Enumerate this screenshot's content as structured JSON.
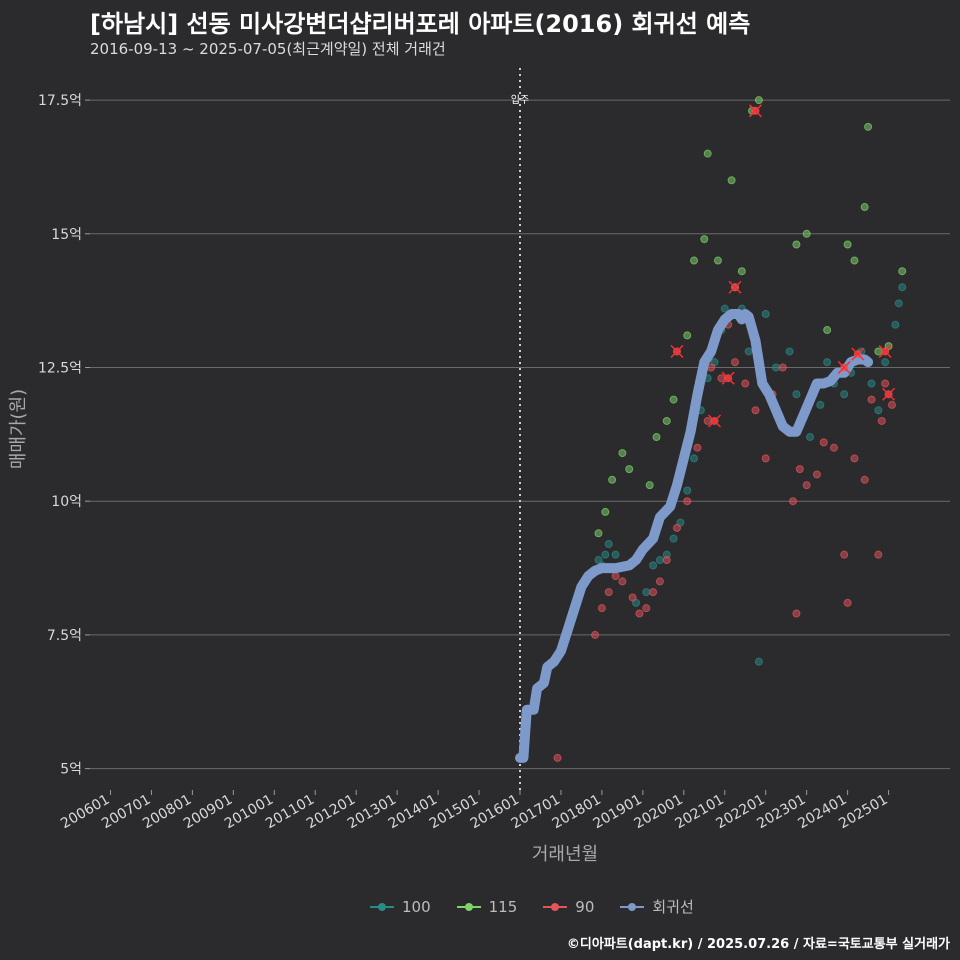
{
  "title": "[하남시] 선동 미사강변더샵리버포레 아파트(2016) 회귀선 예측",
  "subtitle": "2016-09-13 ~ 2025-07-05(최근계약일) 전체 거래건",
  "credit": "©디아파트(dapt.kr) / 2025.07.26 / 자료=국토교통부 실거래가",
  "colors": {
    "s100": "#2a8a86",
    "s115": "#7fd36b",
    "s90": "#e3545b",
    "reg": "#7d9acb"
  },
  "chart_data": {
    "type": "scatter",
    "xlabel": "거래년월",
    "ylabel": "매매가(원)",
    "x_ticks": [
      "200601",
      "200701",
      "200801",
      "200901",
      "201001",
      "201101",
      "201201",
      "201301",
      "201401",
      "201501",
      "201601",
      "201701",
      "201801",
      "201901",
      "202001",
      "202101",
      "202201",
      "202301",
      "202401",
      "202501"
    ],
    "y_ticks": [
      "5억",
      "7.5억",
      "10억",
      "12.5억",
      "15억",
      "17.5억"
    ],
    "y_tick_values": [
      5,
      7.5,
      10,
      12.5,
      15,
      17.5
    ],
    "xlim": [
      "2005-07",
      "2026-07"
    ],
    "ylim": [
      4.6,
      18.1
    ],
    "annotation": {
      "label": "입주",
      "x": "2016-01"
    },
    "grid": true,
    "legend_position": "bottom",
    "series": [
      {
        "name": "100",
        "points": [
          [
            "2017-12",
            8.9
          ],
          [
            "2018-01",
            8.8
          ],
          [
            "2018-02",
            9.0
          ],
          [
            "2018-03",
            9.2
          ],
          [
            "2018-05",
            9.0
          ],
          [
            "2018-08",
            8.8
          ],
          [
            "2018-11",
            8.1
          ],
          [
            "2019-02",
            8.3
          ],
          [
            "2019-04",
            8.8
          ],
          [
            "2019-06",
            8.9
          ],
          [
            "2019-08",
            9.0
          ],
          [
            "2019-10",
            9.3
          ],
          [
            "2019-12",
            9.6
          ],
          [
            "2020-02",
            10.2
          ],
          [
            "2020-04",
            10.8
          ],
          [
            "2020-06",
            11.7
          ],
          [
            "2020-08",
            12.3
          ],
          [
            "2020-10",
            12.6
          ],
          [
            "2020-12",
            13.2
          ],
          [
            "2021-01",
            13.6
          ],
          [
            "2021-04",
            14.0
          ],
          [
            "2021-06",
            13.6
          ],
          [
            "2021-08",
            12.8
          ],
          [
            "2021-11",
            7.0
          ],
          [
            "2022-01",
            13.5
          ],
          [
            "2022-04",
            12.5
          ],
          [
            "2022-08",
            12.8
          ],
          [
            "2022-10",
            12.0
          ],
          [
            "2023-02",
            11.2
          ],
          [
            "2023-05",
            11.8
          ],
          [
            "2023-07",
            12.6
          ],
          [
            "2023-09",
            12.2
          ],
          [
            "2023-12",
            12.0
          ],
          [
            "2024-02",
            12.4
          ],
          [
            "2024-05",
            12.8
          ],
          [
            "2024-08",
            12.2
          ],
          [
            "2024-10",
            11.7
          ],
          [
            "2024-12",
            12.6
          ],
          [
            "2025-03",
            13.3
          ],
          [
            "2025-04",
            13.7
          ],
          [
            "2025-05",
            14.0
          ]
        ]
      },
      {
        "name": "115",
        "points": [
          [
            "2017-12",
            9.4
          ],
          [
            "2018-02",
            9.8
          ],
          [
            "2018-04",
            10.4
          ],
          [
            "2018-07",
            10.9
          ],
          [
            "2018-09",
            10.6
          ],
          [
            "2019-03",
            10.3
          ],
          [
            "2019-05",
            11.2
          ],
          [
            "2019-08",
            11.5
          ],
          [
            "2019-10",
            11.9
          ],
          [
            "2020-02",
            13.1
          ],
          [
            "2020-04",
            14.5
          ],
          [
            "2020-07",
            14.9
          ],
          [
            "2020-08",
            16.5
          ],
          [
            "2020-11",
            14.5
          ],
          [
            "2021-03",
            16.0
          ],
          [
            "2021-06",
            14.3
          ],
          [
            "2021-09",
            17.3
          ],
          [
            "2021-11",
            17.5
          ],
          [
            "2022-10",
            14.8
          ],
          [
            "2023-01",
            15.0
          ],
          [
            "2023-07",
            13.2
          ],
          [
            "2024-01",
            14.8
          ],
          [
            "2024-03",
            14.5
          ],
          [
            "2024-06",
            15.5
          ],
          [
            "2024-07",
            17.0
          ],
          [
            "2024-10",
            12.8
          ],
          [
            "2025-01",
            12.9
          ],
          [
            "2025-05",
            14.3
          ]
        ]
      },
      {
        "name": "90",
        "points": [
          [
            "2016-12",
            5.2
          ],
          [
            "2017-11",
            7.5
          ],
          [
            "2018-01",
            8.0
          ],
          [
            "2018-03",
            8.3
          ],
          [
            "2018-05",
            8.6
          ],
          [
            "2018-07",
            8.5
          ],
          [
            "2018-10",
            8.2
          ],
          [
            "2018-12",
            7.9
          ],
          [
            "2019-02",
            8.0
          ],
          [
            "2019-04",
            8.3
          ],
          [
            "2019-06",
            8.5
          ],
          [
            "2019-08",
            8.9
          ],
          [
            "2019-11",
            9.5
          ],
          [
            "2020-02",
            10.0
          ],
          [
            "2020-05",
            11.0
          ],
          [
            "2020-08",
            11.5
          ],
          [
            "2020-09",
            12.5
          ],
          [
            "2020-12",
            12.3
          ],
          [
            "2021-02",
            13.3
          ],
          [
            "2021-04",
            12.6
          ],
          [
            "2021-07",
            12.2
          ],
          [
            "2021-10",
            11.7
          ],
          [
            "2022-01",
            10.8
          ],
          [
            "2022-03",
            12.0
          ],
          [
            "2022-06",
            12.5
          ],
          [
            "2022-09",
            10.0
          ],
          [
            "2022-10",
            7.9
          ],
          [
            "2022-11",
            10.6
          ],
          [
            "2023-01",
            10.3
          ],
          [
            "2023-04",
            10.5
          ],
          [
            "2023-06",
            11.1
          ],
          [
            "2023-09",
            11.0
          ],
          [
            "2023-12",
            9.0
          ],
          [
            "2024-01",
            8.1
          ],
          [
            "2024-03",
            10.8
          ],
          [
            "2024-06",
            10.4
          ],
          [
            "2024-08",
            11.9
          ],
          [
            "2024-10",
            9.0
          ],
          [
            "2024-11",
            11.5
          ],
          [
            "2024-12",
            12.2
          ],
          [
            "2025-02",
            11.8
          ]
        ]
      },
      {
        "name": "회귀선",
        "line": [
          [
            "2016-01",
            5.2
          ],
          [
            "2016-02",
            5.2
          ],
          [
            "2016-03",
            6.1
          ],
          [
            "2016-05",
            6.1
          ],
          [
            "2016-06",
            6.5
          ],
          [
            "2016-08",
            6.6
          ],
          [
            "2016-09",
            6.9
          ],
          [
            "2016-11",
            7.0
          ],
          [
            "2017-01",
            7.2
          ],
          [
            "2017-03",
            7.6
          ],
          [
            "2017-05",
            8.0
          ],
          [
            "2017-07",
            8.4
          ],
          [
            "2017-09",
            8.6
          ],
          [
            "2017-11",
            8.7
          ],
          [
            "2018-01",
            8.75
          ],
          [
            "2018-05",
            8.75
          ],
          [
            "2018-09",
            8.8
          ],
          [
            "2018-11",
            8.9
          ],
          [
            "2019-01",
            9.1
          ],
          [
            "2019-04",
            9.3
          ],
          [
            "2019-06",
            9.7
          ],
          [
            "2019-09",
            9.9
          ],
          [
            "2019-11",
            10.3
          ],
          [
            "2020-01",
            10.8
          ],
          [
            "2020-03",
            11.3
          ],
          [
            "2020-05",
            12.0
          ],
          [
            "2020-07",
            12.6
          ],
          [
            "2020-09",
            12.8
          ],
          [
            "2020-11",
            13.2
          ],
          [
            "2021-01",
            13.4
          ],
          [
            "2021-03",
            13.5
          ],
          [
            "2021-05",
            13.5
          ],
          [
            "2021-06",
            13.4
          ],
          [
            "2021-07",
            13.5
          ],
          [
            "2021-08",
            13.45
          ],
          [
            "2021-10",
            13.0
          ],
          [
            "2021-12",
            12.2
          ],
          [
            "2022-02",
            12.0
          ],
          [
            "2022-04",
            11.7
          ],
          [
            "2022-06",
            11.4
          ],
          [
            "2022-08",
            11.3
          ],
          [
            "2022-10",
            11.3
          ],
          [
            "2022-12",
            11.6
          ],
          [
            "2023-02",
            11.9
          ],
          [
            "2023-04",
            12.2
          ],
          [
            "2023-06",
            12.2
          ],
          [
            "2023-08",
            12.25
          ],
          [
            "2023-10",
            12.4
          ],
          [
            "2023-12",
            12.4
          ],
          [
            "2024-02",
            12.6
          ],
          [
            "2024-04",
            12.65
          ],
          [
            "2024-06",
            12.65
          ],
          [
            "2024-07",
            12.6
          ]
        ]
      }
    ],
    "highlighted": [
      [
        "2019-11",
        12.8
      ],
      [
        "2020-10",
        11.5
      ],
      [
        "2021-02",
        12.3
      ],
      [
        "2021-04",
        14.0
      ],
      [
        "2021-10",
        17.3
      ],
      [
        "2023-12",
        12.5
      ],
      [
        "2024-04",
        12.75
      ],
      [
        "2024-12",
        12.8
      ],
      [
        "2025-01",
        12.0
      ]
    ]
  },
  "legend": [
    {
      "label": "100",
      "color_key": "s100"
    },
    {
      "label": "115",
      "color_key": "s115"
    },
    {
      "label": "90",
      "color_key": "s90"
    },
    {
      "label": "회귀선",
      "color_key": "reg"
    }
  ]
}
